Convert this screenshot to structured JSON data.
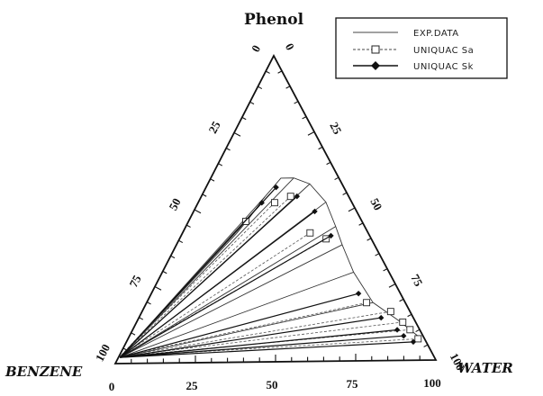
{
  "chart_data": {
    "type": "ternary",
    "vertex_labels": {
      "top": "Phenol",
      "left": "BENZENE",
      "right": "WATER"
    },
    "bottom_ticks": [
      "0",
      "25",
      "50",
      "75",
      "100"
    ],
    "left_ticks": [
      "100",
      "75",
      "50",
      "25",
      "0"
    ],
    "right_ticks": [
      "100",
      "75",
      "50",
      "25",
      "0"
    ],
    "legend": [
      {
        "label": "EXP.DATA",
        "style": "solid",
        "marker": "none"
      },
      {
        "label": "UNIQUAC Sa",
        "style": "dashed",
        "marker": "square"
      },
      {
        "label": "UNIQUAC Sk",
        "style": "solid",
        "marker": "diamond"
      }
    ],
    "exp_binodal": [
      [
        92,
        7
      ],
      [
        82,
        13
      ],
      [
        71,
        19
      ],
      [
        60,
        29
      ],
      [
        52,
        38
      ],
      [
        47,
        44
      ],
      [
        40,
        52
      ],
      [
        32,
        58
      ],
      [
        26,
        60
      ],
      [
        22,
        60
      ],
      [
        20,
        54
      ],
      [
        18.5,
        47
      ],
      [
        17,
        42
      ]
    ],
    "water_rich_phase": [
      0.5,
      2
    ],
    "uniquac_sa": [
      [
        91,
        7
      ],
      [
        87,
        10
      ],
      [
        83.5,
        12.5
      ],
      [
        78,
        16
      ],
      [
        69,
        19
      ],
      [
        46,
        40
      ],
      [
        40,
        42
      ],
      [
        28,
        54
      ],
      [
        24,
        52
      ],
      [
        18,
        46
      ]
    ],
    "uniquac_sk": [
      [
        90,
        6
      ],
      [
        86,
        8
      ],
      [
        83,
        10
      ],
      [
        76,
        14
      ],
      [
        65,
        22
      ],
      [
        47,
        41
      ],
      [
        38,
        49
      ],
      [
        30,
        54
      ],
      [
        22,
        57
      ],
      [
        20,
        52
      ]
    ]
  }
}
